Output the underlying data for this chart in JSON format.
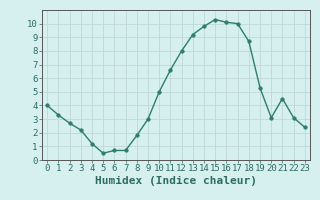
{
  "x": [
    0,
    1,
    2,
    3,
    4,
    5,
    6,
    7,
    8,
    9,
    10,
    11,
    12,
    13,
    14,
    15,
    16,
    17,
    18,
    19,
    20,
    21,
    22,
    23
  ],
  "y": [
    4,
    3.3,
    2.7,
    2.2,
    1.2,
    0.5,
    0.7,
    0.7,
    1.8,
    3.0,
    5.0,
    6.6,
    8.0,
    9.2,
    9.8,
    10.3,
    10.1,
    10.0,
    8.7,
    5.3,
    3.1,
    4.5,
    3.1,
    2.4
  ],
  "xlabel": "Humidex (Indice chaleur)",
  "xlim": [
    -0.5,
    23.5
  ],
  "ylim": [
    0,
    11
  ],
  "yticks": [
    0,
    1,
    2,
    3,
    4,
    5,
    6,
    7,
    8,
    9,
    10
  ],
  "xticks": [
    0,
    1,
    2,
    3,
    4,
    5,
    6,
    7,
    8,
    9,
    10,
    11,
    12,
    13,
    14,
    15,
    16,
    17,
    18,
    19,
    20,
    21,
    22,
    23
  ],
  "line_color": "#2e7d6e",
  "marker_color": "#2e7d6e",
  "bg_color": "#d6f0ef",
  "grid_color": "#c0d8d8",
  "axis_bg": "#d6f0ef",
  "xlabel_fontsize": 8,
  "tick_fontsize": 6.5
}
